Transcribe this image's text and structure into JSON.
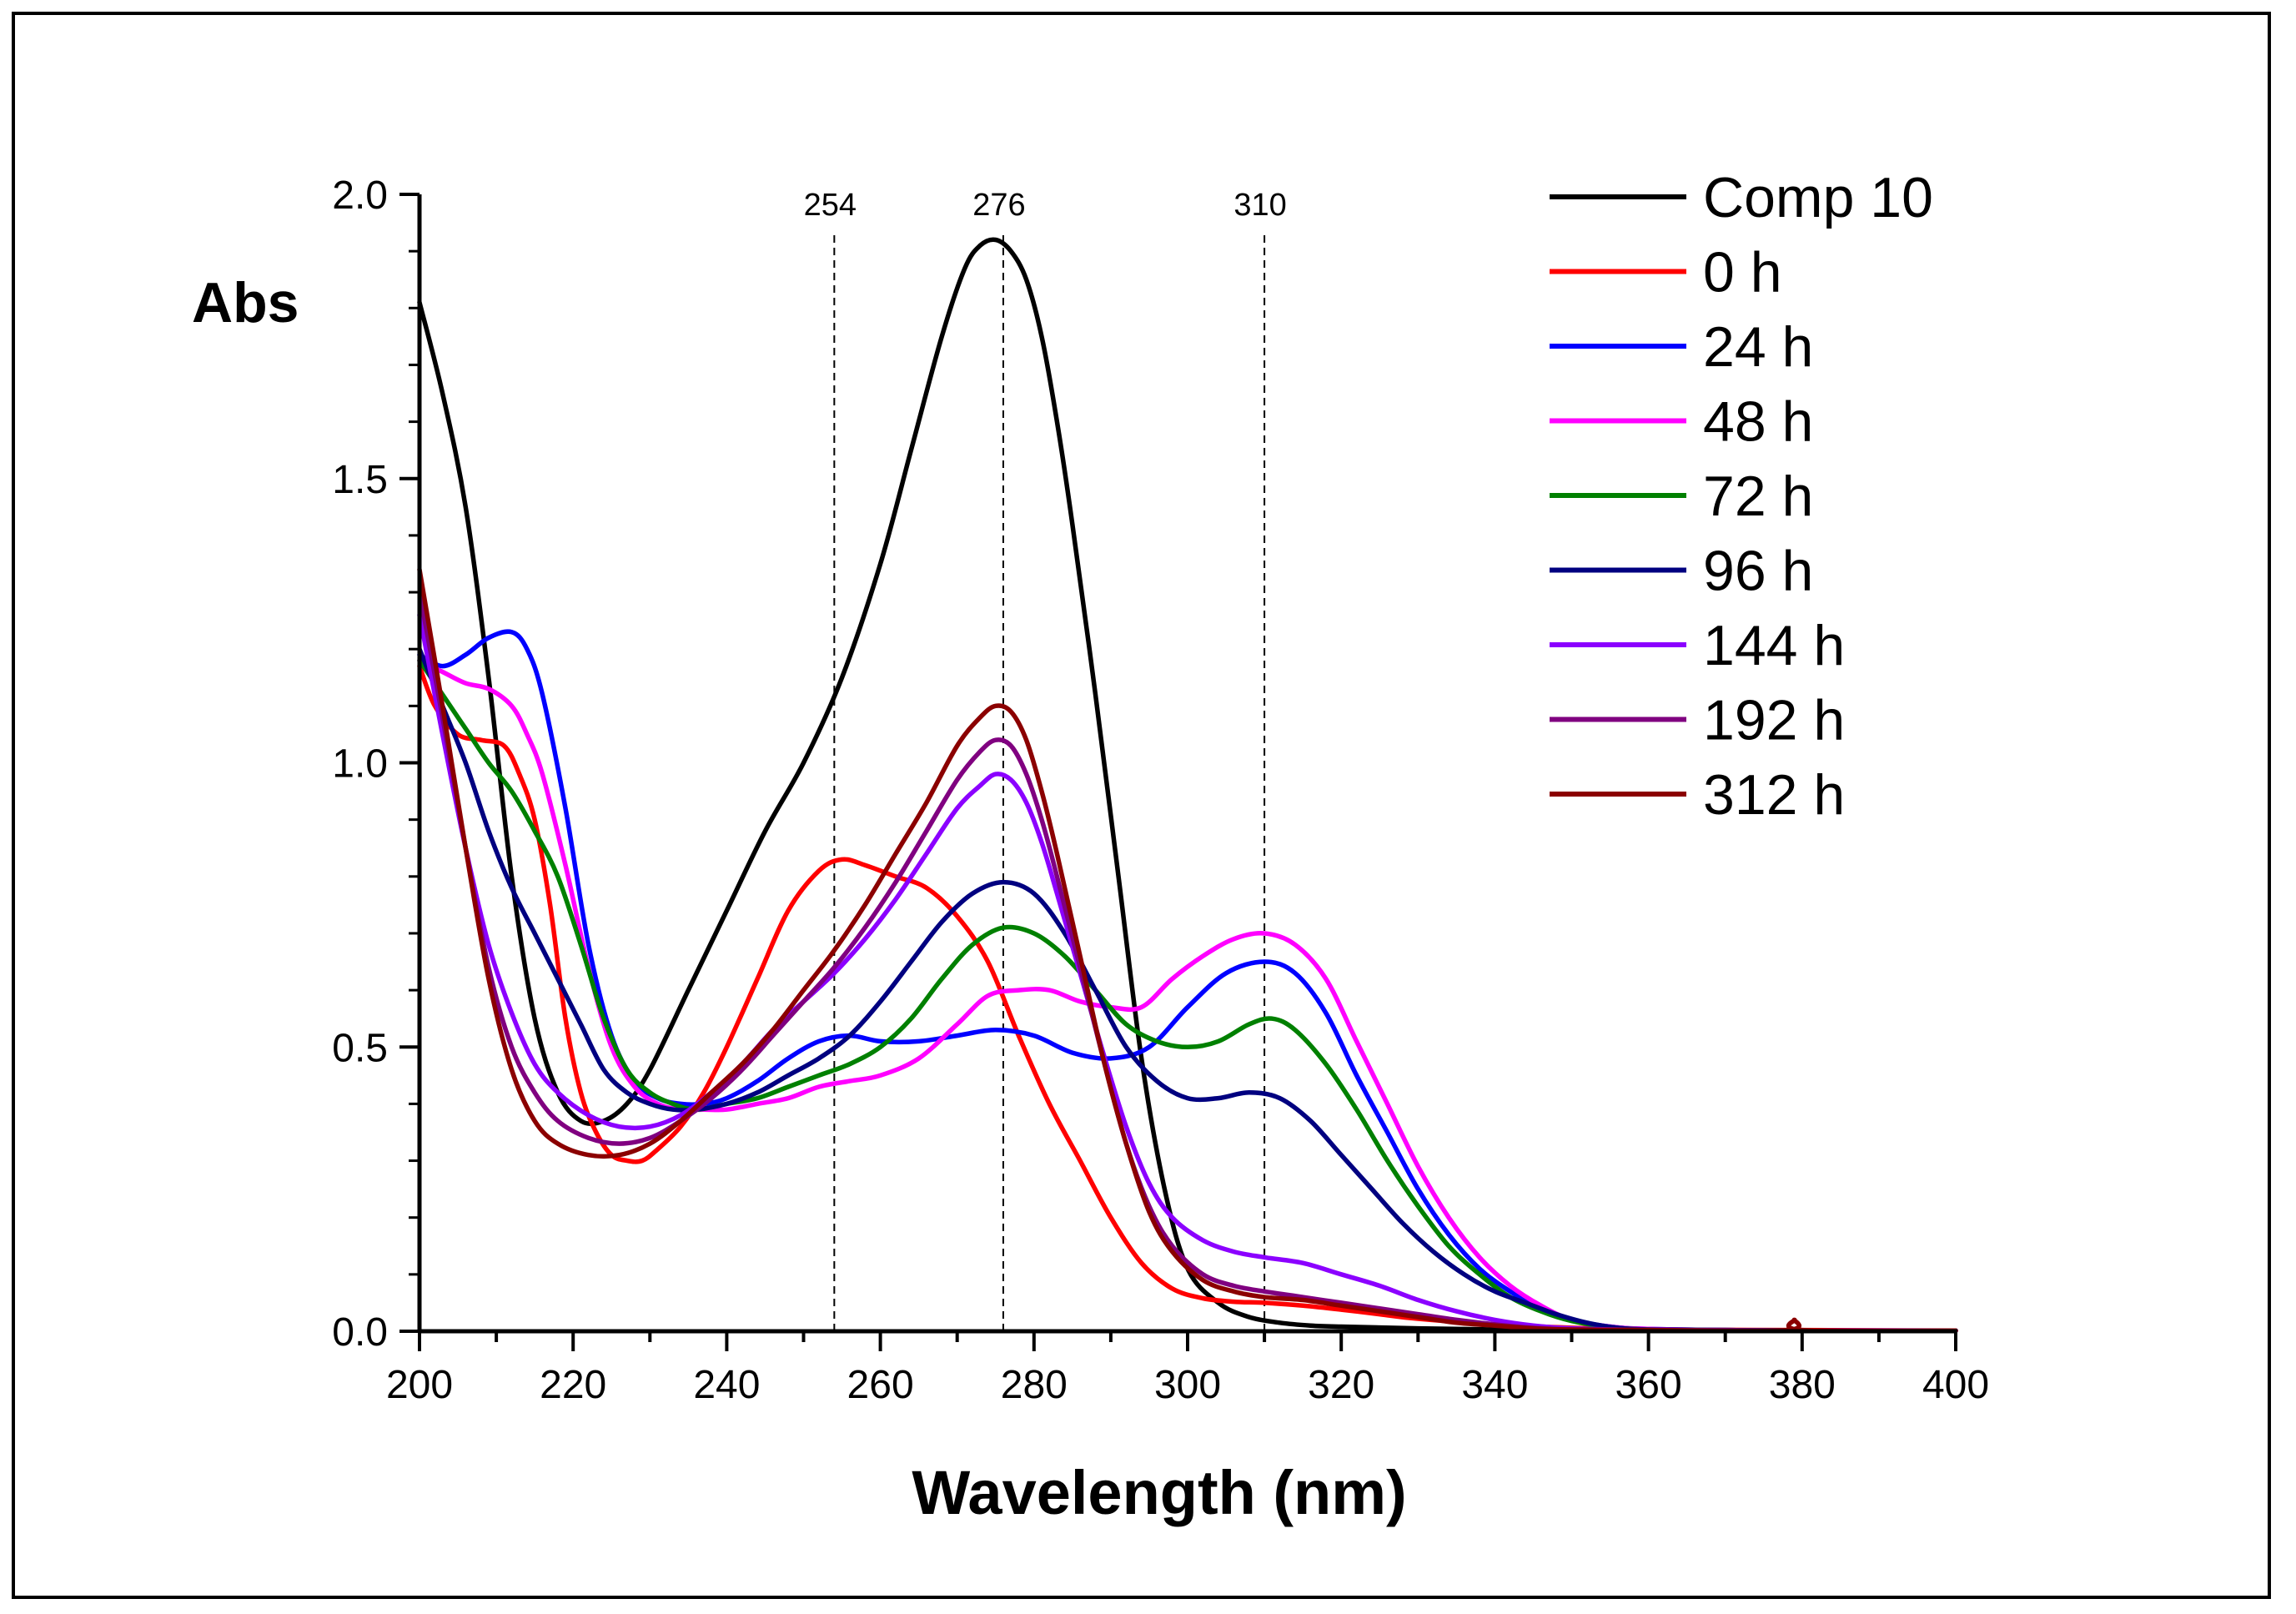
{
  "chart_data": {
    "type": "line",
    "title": "",
    "xlabel": "Wavelength (nm)",
    "ylabel": "Abs",
    "xlim": [
      200,
      400
    ],
    "ylim": [
      0,
      2.0
    ],
    "x_ticks": [
      200,
      220,
      240,
      260,
      280,
      300,
      320,
      340,
      360,
      380,
      400
    ],
    "x_tick_labels": [
      "200",
      "220",
      "240",
      "260",
      "280",
      "300",
      "320",
      "340",
      "360",
      "380",
      "400"
    ],
    "y_ticks": [
      0,
      0.5,
      1.0,
      1.5,
      2.0
    ],
    "y_tick_labels": [
      "0.0",
      "0.5",
      "1.0",
      "1.5",
      "2.0"
    ],
    "grid": false,
    "legend_position": "top-right",
    "reference_lines": [
      {
        "x": 254,
        "label": "254"
      },
      {
        "x": 276,
        "label": "276"
      },
      {
        "x": 310,
        "label": "310"
      }
    ],
    "series": [
      {
        "name": "Comp 10",
        "color": "#000000",
        "x": [
          200,
          203,
          206,
          209,
          212,
          215,
          218,
          221,
          224,
          227,
          230,
          235,
          240,
          245,
          250,
          255,
          260,
          264,
          268,
          271,
          273,
          275,
          277,
          279,
          281,
          283,
          285,
          288,
          291,
          294,
          297,
          300,
          304,
          308,
          312,
          316,
          320,
          330,
          340,
          350,
          360,
          380,
          400
        ],
        "y": [
          1.81,
          1.65,
          1.45,
          1.15,
          0.8,
          0.55,
          0.42,
          0.37,
          0.37,
          0.4,
          0.46,
          0.6,
          0.74,
          0.88,
          1.0,
          1.15,
          1.35,
          1.55,
          1.75,
          1.87,
          1.91,
          1.92,
          1.9,
          1.85,
          1.75,
          1.6,
          1.42,
          1.12,
          0.8,
          0.48,
          0.25,
          0.11,
          0.05,
          0.025,
          0.015,
          0.01,
          0.008,
          0.005,
          0.003,
          0.002,
          0.001,
          0.001,
          0.001
        ]
      },
      {
        "name": "0 h",
        "color": "#ff0000",
        "x": [
          200,
          202,
          205,
          208,
          211,
          213,
          215,
          217,
          219,
          221,
          223,
          225,
          227,
          229,
          231,
          234,
          237,
          240,
          244,
          248,
          252,
          255,
          258,
          262,
          266,
          270,
          274,
          278,
          282,
          286,
          290,
          294,
          298,
          302,
          306,
          310,
          315,
          320,
          325,
          330,
          340,
          350,
          360,
          380,
          400
        ],
        "y": [
          1.17,
          1.1,
          1.05,
          1.04,
          1.03,
          0.98,
          0.9,
          0.75,
          0.55,
          0.42,
          0.35,
          0.31,
          0.3,
          0.3,
          0.32,
          0.36,
          0.42,
          0.5,
          0.62,
          0.74,
          0.81,
          0.83,
          0.82,
          0.8,
          0.78,
          0.73,
          0.65,
          0.52,
          0.4,
          0.3,
          0.2,
          0.12,
          0.075,
          0.058,
          0.052,
          0.05,
          0.045,
          0.038,
          0.03,
          0.022,
          0.012,
          0.006,
          0.003,
          0.002,
          0.001
        ]
      },
      {
        "name": "24 h",
        "color": "#0000ff",
        "x": [
          200,
          203,
          206,
          209,
          212,
          214,
          216,
          219,
          222,
          225,
          228,
          231,
          234,
          237,
          240,
          244,
          248,
          252,
          256,
          260,
          265,
          270,
          275,
          280,
          285,
          290,
          295,
          300,
          305,
          310,
          314,
          318,
          322,
          326,
          330,
          334,
          338,
          342,
          346,
          350,
          355,
          360,
          370,
          380,
          400
        ],
        "y": [
          1.19,
          1.17,
          1.19,
          1.22,
          1.23,
          1.2,
          1.12,
          0.92,
          0.68,
          0.52,
          0.44,
          0.41,
          0.4,
          0.4,
          0.41,
          0.44,
          0.48,
          0.51,
          0.52,
          0.51,
          0.51,
          0.52,
          0.53,
          0.52,
          0.49,
          0.48,
          0.5,
          0.57,
          0.63,
          0.65,
          0.63,
          0.56,
          0.45,
          0.35,
          0.25,
          0.17,
          0.11,
          0.07,
          0.04,
          0.02,
          0.008,
          0.004,
          0.002,
          0.001,
          0.001
        ]
      },
      {
        "name": "48 h",
        "color": "#ff00ff",
        "x": [
          200,
          203,
          206,
          209,
          212,
          214,
          216,
          219,
          222,
          225,
          228,
          231,
          234,
          237,
          240,
          244,
          248,
          252,
          256,
          260,
          265,
          270,
          274,
          278,
          282,
          286,
          290,
          294,
          298,
          302,
          306,
          310,
          314,
          318,
          322,
          326,
          330,
          334,
          338,
          342,
          346,
          350,
          355,
          360,
          370,
          380,
          400
        ],
        "y": [
          1.18,
          1.16,
          1.14,
          1.13,
          1.1,
          1.05,
          0.98,
          0.82,
          0.64,
          0.5,
          0.43,
          0.4,
          0.39,
          0.39,
          0.39,
          0.4,
          0.41,
          0.43,
          0.44,
          0.45,
          0.48,
          0.54,
          0.59,
          0.6,
          0.6,
          0.58,
          0.57,
          0.57,
          0.62,
          0.66,
          0.69,
          0.7,
          0.68,
          0.62,
          0.51,
          0.4,
          0.29,
          0.2,
          0.13,
          0.08,
          0.045,
          0.02,
          0.008,
          0.004,
          0.002,
          0.001,
          0.001
        ]
      },
      {
        "name": "72 h",
        "color": "#008000",
        "x": [
          200,
          203,
          206,
          209,
          212,
          215,
          218,
          221,
          224,
          227,
          230,
          233,
          236,
          240,
          244,
          248,
          252,
          256,
          260,
          264,
          268,
          272,
          276,
          280,
          284,
          288,
          292,
          296,
          300,
          304,
          308,
          311,
          314,
          318,
          322,
          326,
          330,
          334,
          338,
          342,
          346,
          350,
          355,
          360,
          370,
          380,
          400
        ],
        "y": [
          1.18,
          1.12,
          1.06,
          1.0,
          0.95,
          0.88,
          0.8,
          0.68,
          0.55,
          0.46,
          0.42,
          0.4,
          0.39,
          0.4,
          0.41,
          0.43,
          0.45,
          0.47,
          0.5,
          0.55,
          0.62,
          0.68,
          0.71,
          0.7,
          0.66,
          0.6,
          0.54,
          0.51,
          0.5,
          0.51,
          0.54,
          0.55,
          0.53,
          0.47,
          0.39,
          0.3,
          0.22,
          0.15,
          0.1,
          0.06,
          0.035,
          0.018,
          0.007,
          0.003,
          0.002,
          0.001,
          0.001
        ]
      },
      {
        "name": "96 h",
        "color": "#000080",
        "x": [
          200,
          203,
          206,
          209,
          212,
          215,
          218,
          221,
          224,
          227,
          230,
          233,
          236,
          240,
          244,
          248,
          252,
          256,
          260,
          264,
          268,
          272,
          276,
          280,
          284,
          288,
          292,
          296,
          300,
          304,
          308,
          312,
          316,
          320,
          324,
          328,
          332,
          336,
          340,
          344,
          348,
          352,
          356,
          360,
          370,
          380,
          400
        ],
        "y": [
          1.2,
          1.1,
          1.0,
          0.88,
          0.78,
          0.7,
          0.62,
          0.54,
          0.46,
          0.42,
          0.4,
          0.39,
          0.39,
          0.4,
          0.42,
          0.45,
          0.48,
          0.52,
          0.58,
          0.65,
          0.72,
          0.77,
          0.79,
          0.77,
          0.7,
          0.6,
          0.5,
          0.44,
          0.41,
          0.41,
          0.42,
          0.41,
          0.37,
          0.31,
          0.25,
          0.19,
          0.14,
          0.1,
          0.07,
          0.05,
          0.03,
          0.015,
          0.006,
          0.003,
          0.002,
          0.001,
          0.001
        ]
      },
      {
        "name": "144 h",
        "color": "#8b00ff",
        "x": [
          200,
          203,
          206,
          209,
          212,
          215,
          218,
          222,
          226,
          230,
          234,
          238,
          242,
          246,
          250,
          254,
          258,
          262,
          266,
          270,
          273,
          275,
          277,
          279,
          281,
          283,
          286,
          289,
          292,
          295,
          298,
          302,
          306,
          310,
          315,
          320,
          325,
          330,
          335,
          340,
          345,
          350,
          360,
          380,
          400
        ],
        "y": [
          1.26,
          1.05,
          0.85,
          0.68,
          0.56,
          0.47,
          0.42,
          0.38,
          0.36,
          0.36,
          0.38,
          0.42,
          0.47,
          0.53,
          0.58,
          0.63,
          0.69,
          0.76,
          0.84,
          0.92,
          0.96,
          0.98,
          0.97,
          0.93,
          0.86,
          0.77,
          0.63,
          0.49,
          0.36,
          0.26,
          0.2,
          0.16,
          0.14,
          0.13,
          0.12,
          0.1,
          0.08,
          0.055,
          0.035,
          0.02,
          0.01,
          0.005,
          0.002,
          0.001,
          0.001
        ]
      },
      {
        "name": "192 h",
        "color": "#800080",
        "x": [
          200,
          203,
          206,
          209,
          212,
          215,
          218,
          222,
          226,
          230,
          234,
          238,
          242,
          246,
          250,
          254,
          258,
          262,
          266,
          270,
          273,
          275,
          277,
          279,
          281,
          283,
          286,
          289,
          292,
          295,
          298,
          302,
          306,
          310,
          315,
          320,
          325,
          330,
          335,
          340,
          345,
          350,
          360,
          380,
          400
        ],
        "y": [
          1.3,
          1.08,
          0.85,
          0.64,
          0.5,
          0.42,
          0.37,
          0.34,
          0.33,
          0.34,
          0.37,
          0.41,
          0.46,
          0.52,
          0.58,
          0.64,
          0.71,
          0.79,
          0.88,
          0.97,
          1.02,
          1.04,
          1.03,
          0.98,
          0.9,
          0.8,
          0.64,
          0.48,
          0.33,
          0.22,
          0.15,
          0.1,
          0.08,
          0.07,
          0.06,
          0.05,
          0.04,
          0.03,
          0.02,
          0.012,
          0.006,
          0.003,
          0.002,
          0.001,
          0.001
        ]
      },
      {
        "name": "312 h",
        "color": "#8b0000",
        "x": [
          200,
          203,
          206,
          209,
          212,
          215,
          218,
          222,
          226,
          230,
          234,
          238,
          242,
          246,
          250,
          254,
          258,
          262,
          266,
          270,
          273,
          275,
          277,
          279,
          281,
          283,
          286,
          289,
          292,
          295,
          298,
          302,
          306,
          310,
          315,
          320,
          325,
          330,
          335,
          340,
          345,
          350,
          360,
          378,
          379,
          380,
          400
        ],
        "y": [
          1.34,
          1.1,
          0.85,
          0.62,
          0.46,
          0.37,
          0.33,
          0.31,
          0.31,
          0.33,
          0.37,
          0.42,
          0.47,
          0.53,
          0.6,
          0.67,
          0.75,
          0.84,
          0.93,
          1.03,
          1.08,
          1.1,
          1.09,
          1.04,
          0.95,
          0.84,
          0.66,
          0.48,
          0.33,
          0.21,
          0.14,
          0.09,
          0.07,
          0.06,
          0.055,
          0.045,
          0.035,
          0.025,
          0.015,
          0.01,
          0.005,
          0.003,
          0.002,
          0.002,
          0.02,
          0.002,
          0.001
        ]
      }
    ]
  }
}
